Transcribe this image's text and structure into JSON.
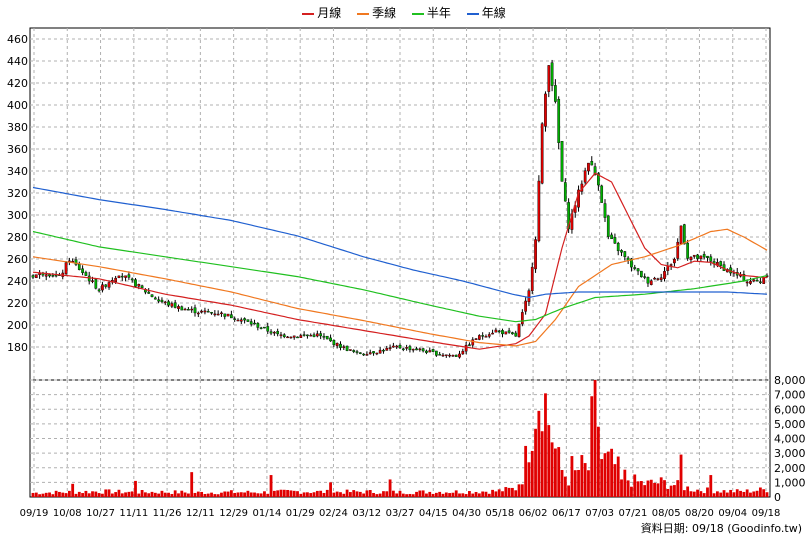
{
  "legend": [
    {
      "label": "月線",
      "color": "#d42020"
    },
    {
      "label": "季線",
      "color": "#f07820"
    },
    {
      "label": "半年",
      "color": "#20c020"
    },
    {
      "label": "年線",
      "color": "#2060d0"
    }
  ],
  "source_text": "資料日期: 09/18  (Goodinfo.tw)",
  "chart_data": [
    {
      "type": "candlestick",
      "ylim": [
        150,
        470
      ],
      "yticks": [
        180,
        200,
        220,
        240,
        260,
        280,
        300,
        320,
        340,
        360,
        380,
        400,
        420,
        440,
        460
      ],
      "xlabels": [
        "09/19",
        "10/08",
        "10/27",
        "11/11",
        "11/26",
        "12/11",
        "12/29",
        "01/14",
        "01/29",
        "02/24",
        "03/12",
        "03/27",
        "04/15",
        "04/30",
        "05/18",
        "06/02",
        "06/17",
        "07/03",
        "07/21",
        "08/05",
        "08/20",
        "09/04",
        "09/18"
      ],
      "close_anchors": [
        [
          0,
          245
        ],
        [
          4,
          248
        ],
        [
          8,
          243
        ],
        [
          11,
          260
        ],
        [
          15,
          248
        ],
        [
          20,
          232
        ],
        [
          26,
          247
        ],
        [
          32,
          235
        ],
        [
          38,
          222
        ],
        [
          44,
          216
        ],
        [
          50,
          212
        ],
        [
          56,
          211
        ],
        [
          62,
          206
        ],
        [
          68,
          199
        ],
        [
          74,
          191
        ],
        [
          80,
          190
        ],
        [
          86,
          191
        ],
        [
          92,
          182
        ],
        [
          98,
          174
        ],
        [
          104,
          176
        ],
        [
          110,
          180
        ],
        [
          116,
          178
        ],
        [
          122,
          174
        ],
        [
          128,
          172
        ],
        [
          134,
          188
        ],
        [
          140,
          195
        ],
        [
          146,
          190
        ],
        [
          150,
          230
        ],
        [
          152,
          280
        ],
        [
          154,
          380
        ],
        [
          156,
          440
        ],
        [
          158,
          400
        ],
        [
          160,
          330
        ],
        [
          162,
          290
        ],
        [
          165,
          320
        ],
        [
          168,
          350
        ],
        [
          171,
          330
        ],
        [
          174,
          280
        ],
        [
          178,
          265
        ],
        [
          182,
          250
        ],
        [
          186,
          240
        ],
        [
          190,
          245
        ],
        [
          194,
          260
        ],
        [
          196,
          290
        ],
        [
          198,
          262
        ],
        [
          204,
          260
        ],
        [
          210,
          250
        ],
        [
          216,
          240
        ],
        [
          220,
          240
        ],
        [
          222,
          247
        ]
      ],
      "series": [
        {
          "name": "月線",
          "color": "#d42020",
          "anchors": [
            [
              0,
              248
            ],
            [
              20,
              242
            ],
            [
              40,
              228
            ],
            [
              60,
              218
            ],
            [
              80,
              205
            ],
            [
              100,
              195
            ],
            [
              120,
              185
            ],
            [
              135,
              178
            ],
            [
              146,
              183
            ],
            [
              150,
              190
            ],
            [
              155,
              210
            ],
            [
              160,
              270
            ],
            [
              165,
              320
            ],
            [
              170,
              338
            ],
            [
              175,
              330
            ],
            [
              180,
              300
            ],
            [
              185,
              270
            ],
            [
              190,
              255
            ],
            [
              195,
              252
            ],
            [
              200,
              258
            ],
            [
              205,
              257
            ],
            [
              210,
              250
            ],
            [
              215,
              245
            ],
            [
              222,
              243
            ]
          ]
        },
        {
          "name": "季線",
          "color": "#f07820",
          "anchors": [
            [
              0,
              262
            ],
            [
              20,
              253
            ],
            [
              40,
              242
            ],
            [
              60,
              230
            ],
            [
              80,
              215
            ],
            [
              100,
              204
            ],
            [
              120,
              192
            ],
            [
              135,
              184
            ],
            [
              146,
              181
            ],
            [
              152,
              185
            ],
            [
              158,
              205
            ],
            [
              165,
              235
            ],
            [
              175,
              255
            ],
            [
              185,
              262
            ],
            [
              195,
              272
            ],
            [
              205,
              285
            ],
            [
              210,
              287
            ],
            [
              215,
              280
            ],
            [
              222,
              268
            ]
          ]
        },
        {
          "name": "半年",
          "color": "#20c020",
          "anchors": [
            [
              0,
              285
            ],
            [
              20,
              271
            ],
            [
              40,
              262
            ],
            [
              60,
              253
            ],
            [
              80,
              244
            ],
            [
              100,
              232
            ],
            [
              120,
              218
            ],
            [
              135,
              208
            ],
            [
              146,
              203
            ],
            [
              152,
              205
            ],
            [
              160,
              215
            ],
            [
              170,
              225
            ],
            [
              185,
              228
            ],
            [
              200,
              233
            ],
            [
              215,
              240
            ],
            [
              222,
              245
            ]
          ]
        },
        {
          "name": "年線",
          "color": "#2060d0",
          "anchors": [
            [
              0,
              325
            ],
            [
              20,
              314
            ],
            [
              40,
              305
            ],
            [
              60,
              295
            ],
            [
              80,
              281
            ],
            [
              100,
              262
            ],
            [
              115,
              250
            ],
            [
              130,
              240
            ],
            [
              145,
              228
            ],
            [
              150,
              225
            ],
            [
              155,
              228
            ],
            [
              165,
              230
            ],
            [
              190,
              230
            ],
            [
              210,
              230
            ],
            [
              222,
              228
            ]
          ]
        }
      ]
    },
    {
      "type": "bar",
      "ylim": [
        0,
        8000
      ],
      "yticks": [
        0,
        1000,
        2000,
        3000,
        4000,
        5000,
        6000,
        7000,
        8000
      ],
      "ytick_labels": [
        "0",
        "1,000",
        "2,000",
        "3,000",
        "4,000",
        "5,000",
        "6,000",
        "7,000",
        "8,000"
      ],
      "color": "#e00000",
      "volume_anchors": [
        [
          0,
          280
        ],
        [
          10,
          330
        ],
        [
          20,
          380
        ],
        [
          30,
          330
        ],
        [
          40,
          340
        ],
        [
          50,
          300
        ],
        [
          60,
          330
        ],
        [
          70,
          320
        ],
        [
          80,
          380
        ],
        [
          90,
          340
        ],
        [
          100,
          360
        ],
        [
          110,
          320
        ],
        [
          120,
          350
        ],
        [
          130,
          360
        ],
        [
          140,
          400
        ],
        [
          146,
          580
        ],
        [
          148,
          1400
        ],
        [
          150,
          3800
        ],
        [
          152,
          6500
        ],
        [
          154,
          7800
        ],
        [
          156,
          5200
        ],
        [
          158,
          3200
        ],
        [
          160,
          1800
        ],
        [
          162,
          1200
        ],
        [
          164,
          1600
        ],
        [
          166,
          2100
        ],
        [
          168,
          1900
        ],
        [
          170,
          7800
        ],
        [
          172,
          2600
        ],
        [
          175,
          2400
        ],
        [
          180,
          1200
        ],
        [
          185,
          900
        ],
        [
          190,
          1000
        ],
        [
          195,
          800
        ],
        [
          200,
          500
        ],
        [
          205,
          450
        ],
        [
          210,
          400
        ],
        [
          215,
          380
        ],
        [
          222,
          520
        ]
      ],
      "volume_spikes": [
        [
          12,
          900
        ],
        [
          31,
          1100
        ],
        [
          48,
          1700
        ],
        [
          72,
          1500
        ],
        [
          90,
          1000
        ],
        [
          108,
          1200
        ],
        [
          163,
          2800
        ],
        [
          178,
          1200
        ],
        [
          196,
          2900
        ],
        [
          205,
          1500
        ]
      ]
    }
  ]
}
